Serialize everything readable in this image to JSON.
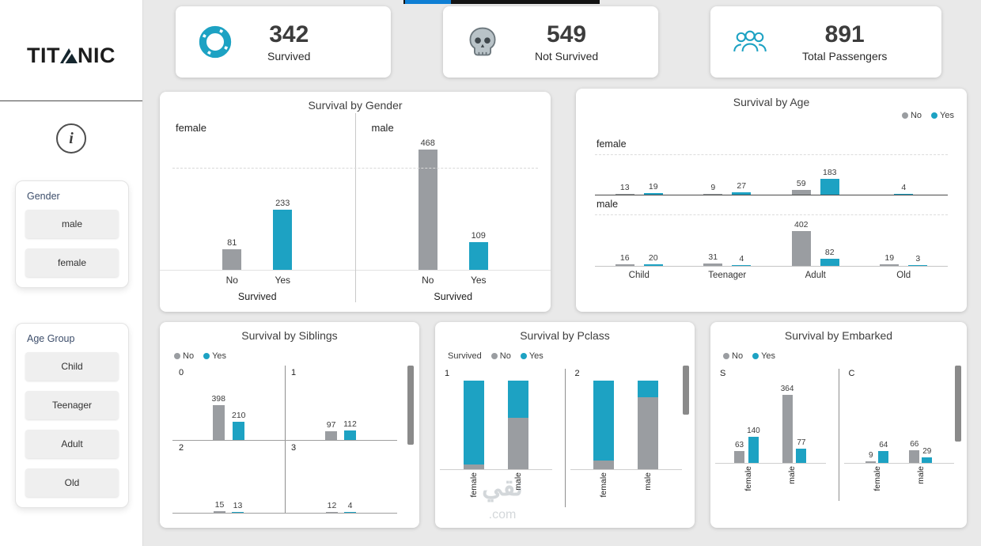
{
  "colors": {
    "yes": "#1da2c3",
    "no": "#9a9da1"
  },
  "sidebar": {
    "logo_pre": "TIT",
    "logo_post": "NIC",
    "info_glyph": "i",
    "filters": [
      {
        "title": "Gender",
        "options": [
          "male",
          "female"
        ]
      },
      {
        "title": "Age Group",
        "options": [
          "Child",
          "Teenager",
          "Adult",
          "Old"
        ]
      }
    ]
  },
  "kpis": [
    {
      "icon": "lifebuoy-icon",
      "value": "342",
      "label": "Survived"
    },
    {
      "icon": "skull-icon",
      "value": "549",
      "label": "Not Survived"
    },
    {
      "icon": "passengers-icon",
      "value": "891",
      "label": "Total Passengers"
    }
  ],
  "watermark": {
    "line1": "نقي",
    "line2": ".com"
  },
  "chart_data": [
    {
      "id": "survival-by-gender",
      "type": "bar",
      "title": "Survival by Gender",
      "xlabel": "Survived",
      "categories": [
        "No",
        "Yes"
      ],
      "ymax": 468,
      "panels": [
        {
          "name": "female",
          "values": {
            "No": 81,
            "Yes": 233
          }
        },
        {
          "name": "male",
          "values": {
            "No": 468,
            "Yes": 109
          }
        }
      ]
    },
    {
      "id": "survival-by-age",
      "type": "bar",
      "title": "Survival by Age",
      "legend": [
        "No",
        "Yes"
      ],
      "categories": [
        "Child",
        "Teenager",
        "Adult",
        "Old"
      ],
      "ymax": 402,
      "rows": [
        {
          "name": "female",
          "No": [
            13,
            9,
            59,
            null
          ],
          "Yes": [
            19,
            27,
            183,
            4
          ]
        },
        {
          "name": "male",
          "No": [
            16,
            31,
            402,
            19
          ],
          "Yes": [
            20,
            4,
            82,
            3
          ]
        }
      ]
    },
    {
      "id": "survival-by-siblings",
      "type": "bar",
      "title": "Survival by Siblings",
      "legend": [
        "No",
        "Yes"
      ],
      "ymax": 398,
      "panels": [
        {
          "name": "0",
          "No": 398,
          "Yes": 210
        },
        {
          "name": "1",
          "No": 97,
          "Yes": 112
        },
        {
          "name": "2",
          "No": 15,
          "Yes": 13
        },
        {
          "name": "3",
          "No": 12,
          "Yes": 4
        }
      ]
    },
    {
      "id": "survival-by-pclass",
      "type": "stacked-bar-100",
      "title": "Survival by Pclass",
      "legend_title": "Survived",
      "legend": [
        "No",
        "Yes"
      ],
      "categories": [
        "female",
        "male"
      ],
      "panels": [
        {
          "name": "1",
          "yes_share": [
            0.95,
            0.42
          ]
        },
        {
          "name": "2",
          "yes_share": [
            0.9,
            0.19
          ]
        }
      ]
    },
    {
      "id": "survival-by-embarked",
      "type": "bar",
      "title": "Survival by Embarked",
      "legend": [
        "No",
        "Yes"
      ],
      "ymax": 364,
      "panels": [
        {
          "name": "S",
          "groups": [
            {
              "name": "female",
              "No": 63,
              "Yes": 140
            },
            {
              "name": "male",
              "No": 364,
              "Yes": 77
            }
          ]
        },
        {
          "name": "C",
          "groups": [
            {
              "name": "female",
              "No": 9,
              "Yes": 64
            },
            {
              "name": "male",
              "No": 66,
              "Yes": 29
            }
          ]
        }
      ]
    }
  ]
}
